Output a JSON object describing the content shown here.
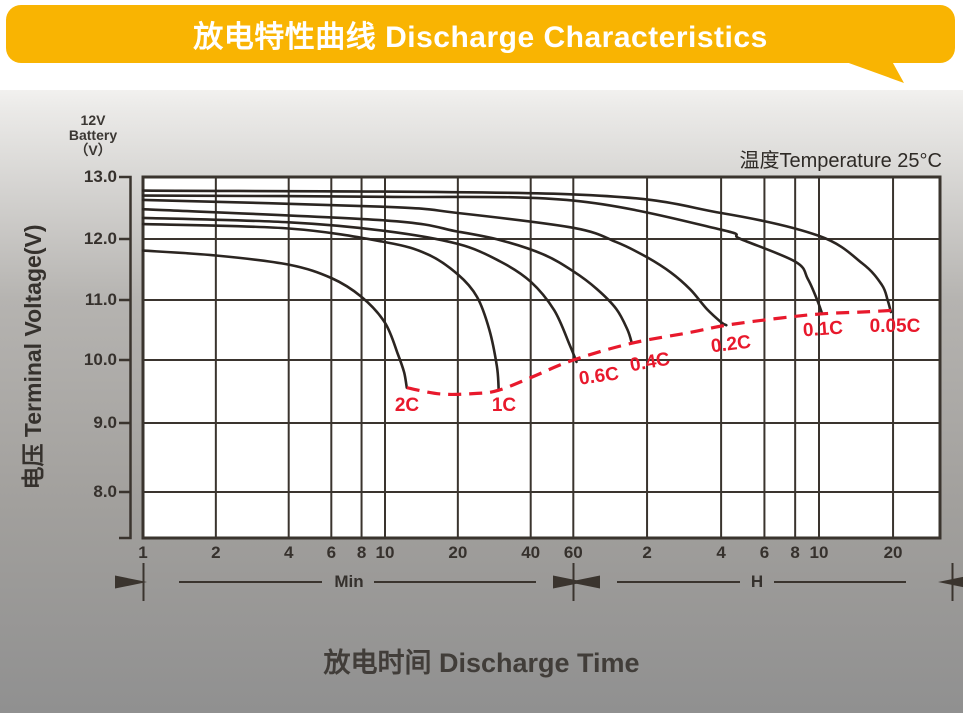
{
  "banner": {
    "title": "放电特性曲线 Discharge Characteristics"
  },
  "labels": {
    "battery_lines": [
      "12V",
      "Battery",
      "（V）"
    ],
    "temperature": "温度Temperature 25°C",
    "y_axis": "电压 Terminal Voltage(V)",
    "x_axis": "放电时间 Discharge Time",
    "minutes_unit": "Min",
    "hours_unit": "H"
  },
  "colors": {
    "banner_bg": "#F9B402",
    "banner_text": "#FFFFFF",
    "grid": "#3A342E",
    "curve": "#2B2521",
    "accent_red": "#E8192C",
    "plot_bg": "#FFFFFF"
  },
  "chart_data": {
    "type": "line",
    "title": "放电特性曲线 Discharge Characteristics",
    "xlabel": "放电时间 Discharge Time",
    "ylabel": "电压 Terminal Voltage(V)",
    "battery": "12V Battery",
    "temperature": "25°C",
    "x_scale": "log",
    "x_ticks_minutes": [
      "1",
      "2",
      "4",
      "6",
      "8",
      "10",
      "20",
      "40",
      "60"
    ],
    "x_ticks_hours": [
      "2",
      "4",
      "6",
      "8",
      "10",
      "20"
    ],
    "x_axis_segments": [
      {
        "unit": "Min",
        "range_min": [
          1,
          60
        ]
      },
      {
        "unit": "H",
        "range_hours": [
          1,
          20
        ]
      }
    ],
    "y_ticks": [
      "13.0",
      "12.0",
      "11.0",
      "10.0",
      "9.0",
      "8.0"
    ],
    "y_range": [
      8.0,
      13.0
    ],
    "grid": true,
    "series": [
      {
        "name": "2C",
        "points_min_v": [
          [
            1,
            11.81
          ],
          [
            2,
            11.73
          ],
          [
            4,
            11.58
          ],
          [
            6,
            11.36
          ],
          [
            8,
            11.05
          ],
          [
            10,
            10.62
          ],
          [
            11.3,
            10.1
          ],
          [
            12,
            9.8
          ],
          [
            12.3,
            9.56
          ]
        ]
      },
      {
        "name": "1C",
        "points_min_v": [
          [
            1,
            12.24
          ],
          [
            4,
            12.17
          ],
          [
            10,
            11.95
          ],
          [
            15,
            11.75
          ],
          [
            20,
            11.42
          ],
          [
            24,
            11.05
          ],
          [
            27,
            10.5
          ],
          [
            29,
            9.9
          ],
          [
            29.5,
            9.52
          ]
        ]
      },
      {
        "name": "0.6C",
        "points_min_v": [
          [
            1,
            12.34
          ],
          [
            4,
            12.27
          ],
          [
            10,
            12.13
          ],
          [
            20,
            11.92
          ],
          [
            30,
            11.63
          ],
          [
            40,
            11.3
          ],
          [
            50,
            10.83
          ],
          [
            58,
            10.25
          ],
          [
            62,
            9.97
          ]
        ]
      },
      {
        "name": "0.4C",
        "points_min_v": [
          [
            1,
            12.48
          ],
          [
            10,
            12.3
          ],
          [
            20,
            12.12
          ],
          [
            30,
            11.98
          ],
          [
            45,
            11.75
          ],
          [
            60,
            11.47
          ],
          [
            75,
            11.18
          ],
          [
            90,
            10.85
          ],
          [
            100,
            10.5
          ],
          [
            104,
            10.28
          ]
        ]
      },
      {
        "name": "0.2C",
        "points_min_v": [
          [
            1,
            12.63
          ],
          [
            10,
            12.52
          ],
          [
            20,
            12.42
          ],
          [
            60,
            12.18
          ],
          [
            90,
            11.95
          ],
          [
            120,
            11.7
          ],
          [
            150,
            11.45
          ],
          [
            180,
            11.17
          ],
          [
            210,
            10.85
          ],
          [
            240,
            10.63
          ],
          [
            252,
            10.58
          ]
        ]
      },
      {
        "name": "0.1C",
        "points_min_v": [
          [
            1,
            12.7
          ],
          [
            10,
            12.68
          ],
          [
            60,
            12.62
          ],
          [
            240,
            12.15
          ],
          [
            288,
            12.0
          ],
          [
            480,
            11.63
          ],
          [
            540,
            11.35
          ],
          [
            590,
            11.0
          ],
          [
            618,
            10.77
          ]
        ]
      },
      {
        "name": "0.05C",
        "points_min_v": [
          [
            1,
            12.78
          ],
          [
            60,
            12.72
          ],
          [
            240,
            12.42
          ],
          [
            600,
            12.05
          ],
          [
            900,
            11.6
          ],
          [
            1080,
            11.25
          ],
          [
            1140,
            11.0
          ],
          [
            1176,
            10.8
          ]
        ]
      }
    ],
    "end_voltage_curve": {
      "name": "discharge-end-voltage",
      "style": "dashed",
      "color": "#E8192C",
      "points_min_v": [
        [
          12.3,
          9.56
        ],
        [
          17,
          9.46
        ],
        [
          24,
          9.47
        ],
        [
          29.5,
          9.52
        ],
        [
          40,
          9.72
        ],
        [
          60,
          10.0
        ],
        [
          104,
          10.28
        ],
        [
          180,
          10.46
        ],
        [
          252,
          10.58
        ],
        [
          420,
          10.7
        ],
        [
          618,
          10.77
        ],
        [
          900,
          10.8
        ],
        [
          1230,
          10.83
        ]
      ]
    }
  }
}
